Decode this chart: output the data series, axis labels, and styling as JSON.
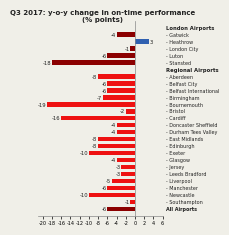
{
  "title": "Q3 2017: y-o-y change in on-time performance\n(% points)",
  "categories": [
    "Gatwick",
    "Heathrow",
    "London City",
    "Luton",
    "Stansted",
    "Aberdeen",
    "Belfast City",
    "Belfast International",
    "Birmingham",
    "Bournemouth",
    "Bristol",
    "Cardiff",
    "Doncaster Sheffield",
    "Durham Tees Valley",
    "East Midlands",
    "Edinburgh",
    "Exeter",
    "Glasgow",
    "Jersey",
    "Leeds Bradford",
    "Liverpool",
    "Manchester",
    "Newcastle",
    "Southampton",
    "All Airports"
  ],
  "values": [
    -4,
    3,
    -1,
    -6,
    -18,
    -8,
    -6,
    -6,
    -7,
    -19,
    -2,
    -16,
    -4,
    -4,
    -8,
    -8,
    -10,
    -4,
    -3,
    -3,
    -5,
    -6,
    -10,
    -1,
    -6
  ],
  "london_header": "London Airports",
  "regional_header": "Regional Airports",
  "dark_red": "#8B0000",
  "blue": "#3060B0",
  "red": "#EE1111",
  "bg_color": "#F0EFE8",
  "title_fontsize": 5.0,
  "bar_label_fontsize": 3.8,
  "legend_fontsize": 3.5,
  "legend_header_fontsize": 3.8,
  "xtick_fontsize": 3.5,
  "xlim_left": -21,
  "xlim_right": 6,
  "xticks": [
    -20,
    -18,
    -16,
    -14,
    -12,
    -10,
    -8,
    -6,
    -4,
    -2,
    0,
    2,
    4,
    6
  ]
}
